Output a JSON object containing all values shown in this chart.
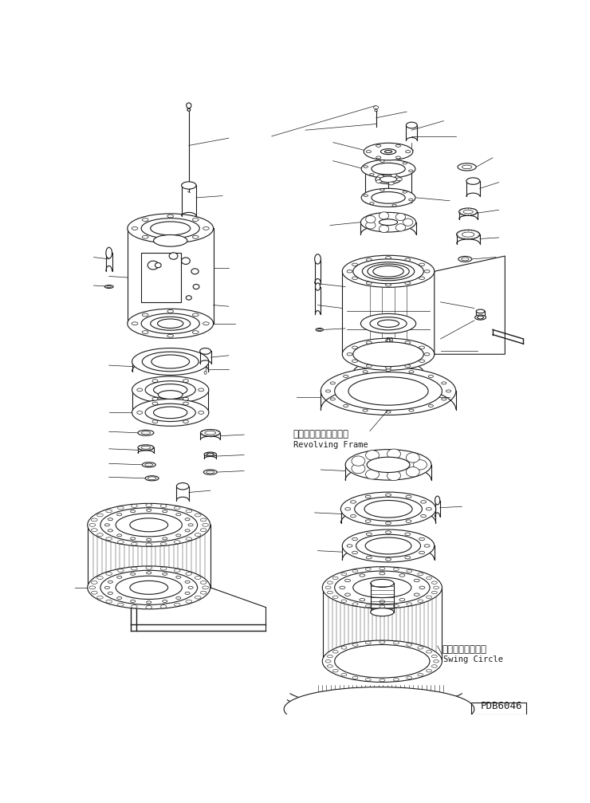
{
  "background_color": "#ffffff",
  "line_color": "#1a1a1a",
  "text_color": "#1a1a1a",
  "label_revolving_frame_jp": "レボルビングフレーム",
  "label_revolving_frame_en": "Revolving Frame",
  "label_swing_circle_jp": "スイングサークル",
  "label_swing_circle_en": "Swing Circle",
  "label_pdb": "PDB6046",
  "figsize": [
    7.4,
    10.07
  ],
  "dpi": 100
}
